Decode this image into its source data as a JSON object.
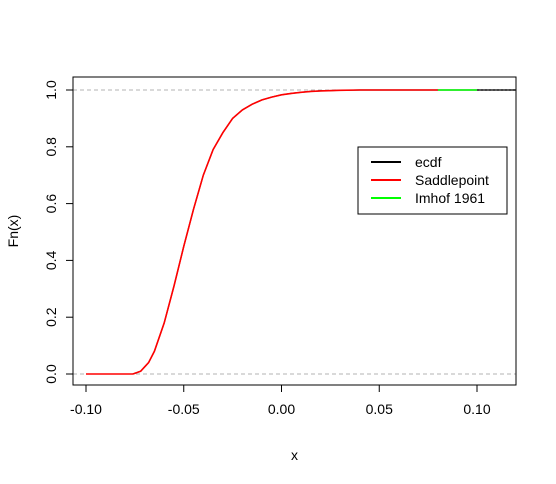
{
  "chart_data": {
    "type": "line",
    "title": "",
    "xlabel": "x",
    "ylabel": "Fn(x)",
    "xlim": [
      -0.1,
      0.12
    ],
    "ylim": [
      0,
      1
    ],
    "xticks": [
      -0.1,
      -0.05,
      0.0,
      0.05,
      0.1
    ],
    "xtick_labels": [
      "-0.10",
      "-0.05",
      "0.00",
      "0.05",
      "0.10"
    ],
    "yticks": [
      0.0,
      0.2,
      0.4,
      0.6,
      0.8,
      1.0
    ],
    "ytick_labels": [
      "0.0",
      "0.2",
      "0.4",
      "0.6",
      "0.8",
      "1.0"
    ],
    "reference_lines_y": [
      0,
      1
    ],
    "legend_position": "right",
    "series": [
      {
        "name": "ecdf",
        "color": "#000000",
        "x": [
          -0.076,
          -0.072,
          -0.068,
          -0.065,
          -0.06,
          -0.055,
          -0.05,
          -0.045,
          -0.04,
          -0.035,
          -0.03,
          -0.025,
          -0.02,
          -0.015,
          -0.01,
          -0.005,
          0.0,
          0.005,
          0.01,
          0.015,
          0.02,
          0.03,
          0.04,
          0.06,
          0.08,
          0.1,
          0.12
        ],
        "y": [
          0.0,
          0.01,
          0.04,
          0.08,
          0.18,
          0.31,
          0.45,
          0.58,
          0.7,
          0.79,
          0.85,
          0.9,
          0.93,
          0.95,
          0.965,
          0.975,
          0.983,
          0.988,
          0.992,
          0.995,
          0.997,
          0.999,
          1.0,
          1.0,
          1.0,
          1.0,
          1.0
        ]
      },
      {
        "name": "Saddlepoint",
        "color": "#ff0000",
        "x": [
          -0.1,
          -0.08,
          -0.076,
          -0.072,
          -0.068,
          -0.065,
          -0.06,
          -0.055,
          -0.05,
          -0.045,
          -0.04,
          -0.035,
          -0.03,
          -0.025,
          -0.02,
          -0.015,
          -0.01,
          -0.005,
          0.0,
          0.005,
          0.01,
          0.015,
          0.02,
          0.03,
          0.04,
          0.06,
          0.08
        ],
        "y": [
          0.0,
          0.0,
          0.0,
          0.01,
          0.04,
          0.08,
          0.18,
          0.31,
          0.45,
          0.58,
          0.7,
          0.79,
          0.85,
          0.9,
          0.93,
          0.95,
          0.965,
          0.975,
          0.983,
          0.988,
          0.992,
          0.995,
          0.997,
          0.999,
          1.0,
          1.0,
          1.0
        ]
      },
      {
        "name": "Imhof 1961",
        "color": "#00ff00",
        "x": [
          0.08,
          0.1
        ],
        "y": [
          1.0,
          1.0
        ]
      }
    ]
  }
}
